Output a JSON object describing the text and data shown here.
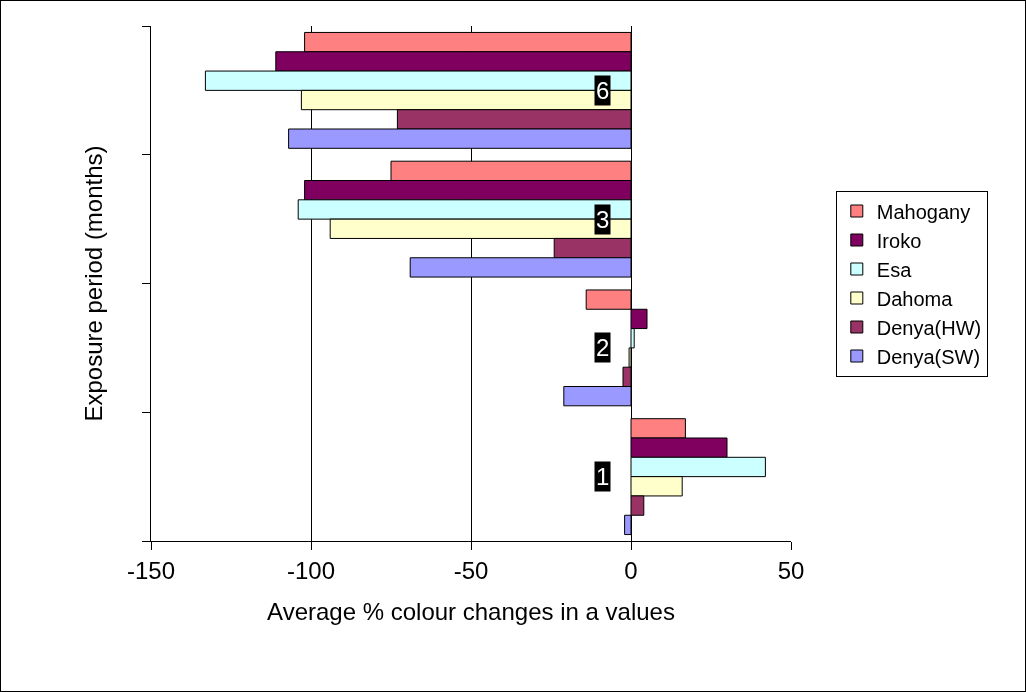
{
  "chart_data": {
    "type": "bar",
    "orientation": "horizontal",
    "xlabel": "Average % colour changes in a values",
    "ylabel": "Exposure period (months)",
    "categories": [
      "6",
      "3",
      "2",
      "1"
    ],
    "series": [
      {
        "name": "Mahogany",
        "color": "#ff8080",
        "values": [
          -102,
          -75,
          -14,
          17
        ]
      },
      {
        "name": "Iroko",
        "color": "#800060",
        "values": [
          -111,
          -102,
          5,
          30
        ]
      },
      {
        "name": "Esa",
        "color": "#ccffff",
        "values": [
          -133,
          -104,
          1,
          42
        ]
      },
      {
        "name": "Dahoma",
        "color": "#ffffcc",
        "values": [
          -103,
          -94,
          -0.6,
          16
        ]
      },
      {
        "name": "Denya(HW)",
        "color": "#993366",
        "values": [
          -73,
          -24,
          -2.5,
          4
        ]
      },
      {
        "name": "Denya(SW)",
        "color": "#9999ff",
        "values": [
          -107,
          -69,
          -21,
          -2
        ]
      }
    ],
    "xlim": [
      -150,
      50
    ],
    "xticks": [
      -150,
      -100,
      -50,
      0,
      50
    ],
    "grid": "x",
    "legend": "right"
  }
}
